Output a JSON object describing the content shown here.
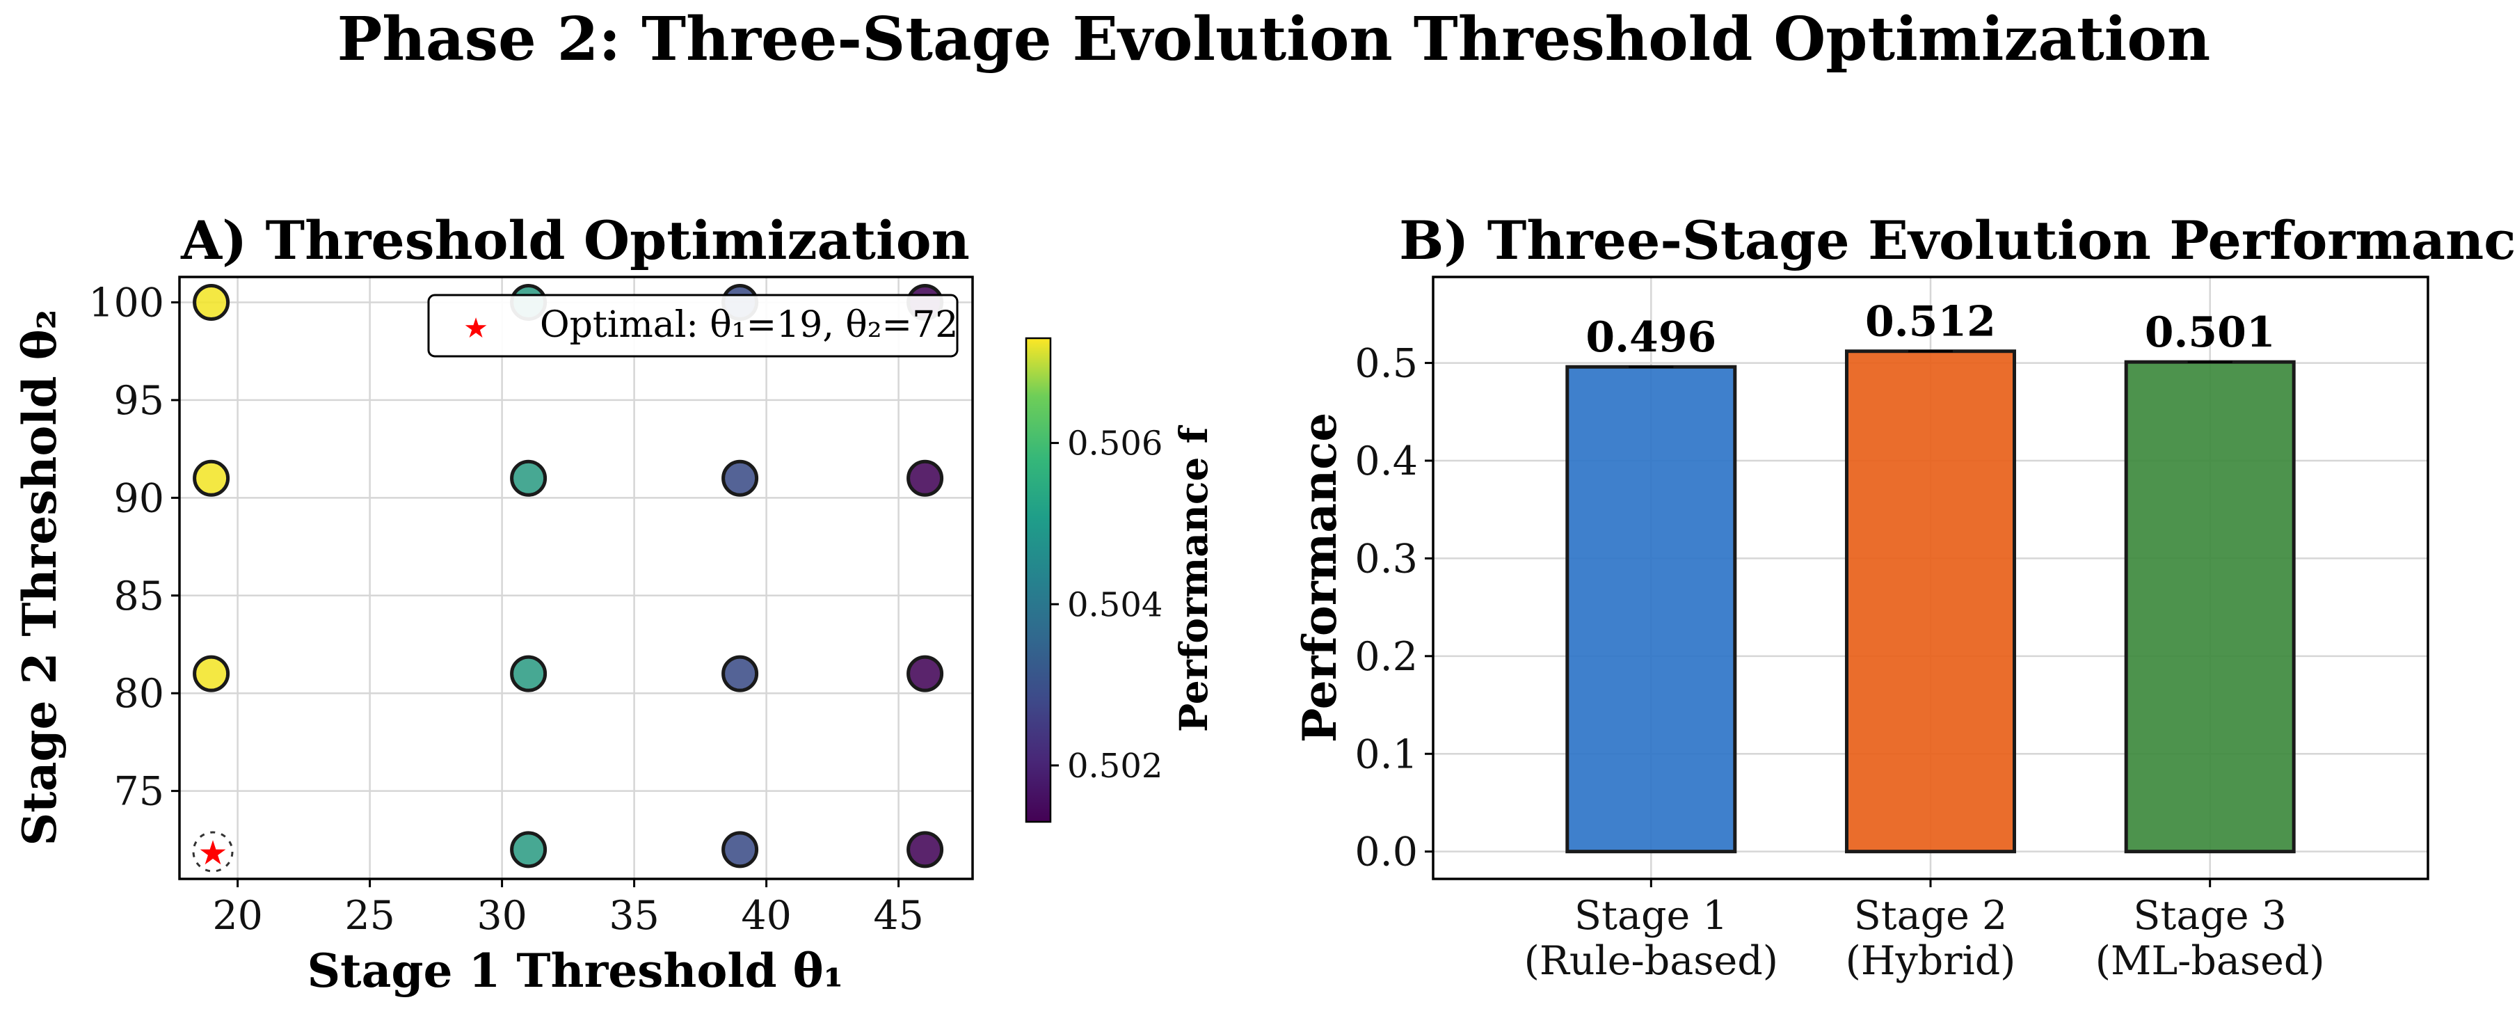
{
  "title": "Phase 2: Three-Stage Evolution Threshold Optimization",
  "chart_data": [
    {
      "type": "scatter",
      "title": "A) Threshold Optimization",
      "xlabel": "Stage 1 Threshold θ₁",
      "ylabel": "Stage 2 Threshold θ₂",
      "xlim": [
        17.8,
        47.8
      ],
      "ylim": [
        70.5,
        101.3
      ],
      "xticks": [
        20,
        25,
        30,
        35,
        40,
        45
      ],
      "yticks": [
        75,
        80,
        85,
        90,
        95,
        100
      ],
      "grid": true,
      "points": [
        {
          "x": 19,
          "y": 72,
          "f": 0.5072,
          "optimal": true
        },
        {
          "x": 19,
          "y": 81,
          "f": 0.5072
        },
        {
          "x": 19,
          "y": 91,
          "f": 0.5072
        },
        {
          "x": 19,
          "y": 100,
          "f": 0.5072
        },
        {
          "x": 31,
          "y": 72,
          "f": 0.5046
        },
        {
          "x": 31,
          "y": 81,
          "f": 0.5046
        },
        {
          "x": 31,
          "y": 91,
          "f": 0.5046
        },
        {
          "x": 31,
          "y": 100,
          "f": 0.5046
        },
        {
          "x": 39,
          "y": 72,
          "f": 0.5027
        },
        {
          "x": 39,
          "y": 81,
          "f": 0.5027
        },
        {
          "x": 39,
          "y": 91,
          "f": 0.5027
        },
        {
          "x": 39,
          "y": 100,
          "f": 0.5027
        },
        {
          "x": 46,
          "y": 72,
          "f": 0.5014
        },
        {
          "x": 46,
          "y": 81,
          "f": 0.5014
        },
        {
          "x": 46,
          "y": 91,
          "f": 0.5014
        },
        {
          "x": 46,
          "y": 100,
          "f": 0.5014
        }
      ],
      "legend": {
        "label": "Optimal: θ₁=19, θ₂=72",
        "placement": "upper-right",
        "marker_color": "#ff0000"
      },
      "colorbar": {
        "label": "Performance f",
        "colormap": "viridis",
        "range": [
          0.5013,
          0.5073
        ],
        "ticks": [
          0.502,
          0.504,
          0.506
        ],
        "tick_labels": [
          "0.502",
          "0.504",
          "0.506"
        ]
      }
    },
    {
      "type": "bar",
      "title": "B) Three-Stage Evolution Performance",
      "ylabel": "Performance",
      "categories": [
        {
          "line1": "Stage 1",
          "line2": "(Rule-based)"
        },
        {
          "line1": "Stage 2",
          "line2": "(Hybrid)"
        },
        {
          "line1": "Stage 3",
          "line2": "(ML-based)"
        }
      ],
      "values": [
        0.496,
        0.512,
        0.501
      ],
      "value_labels": [
        "0.496",
        "0.512",
        "0.501"
      ],
      "colors": [
        "#2f75c8",
        "#e8611a",
        "#3e8a3e"
      ],
      "ylim": [
        -0.028,
        0.588
      ],
      "yticks": [
        0.0,
        0.1,
        0.2,
        0.3,
        0.4,
        0.5
      ],
      "ytick_labels": [
        "0.0",
        "0.1",
        "0.2",
        "0.3",
        "0.4",
        "0.5"
      ],
      "grid": true
    }
  ]
}
